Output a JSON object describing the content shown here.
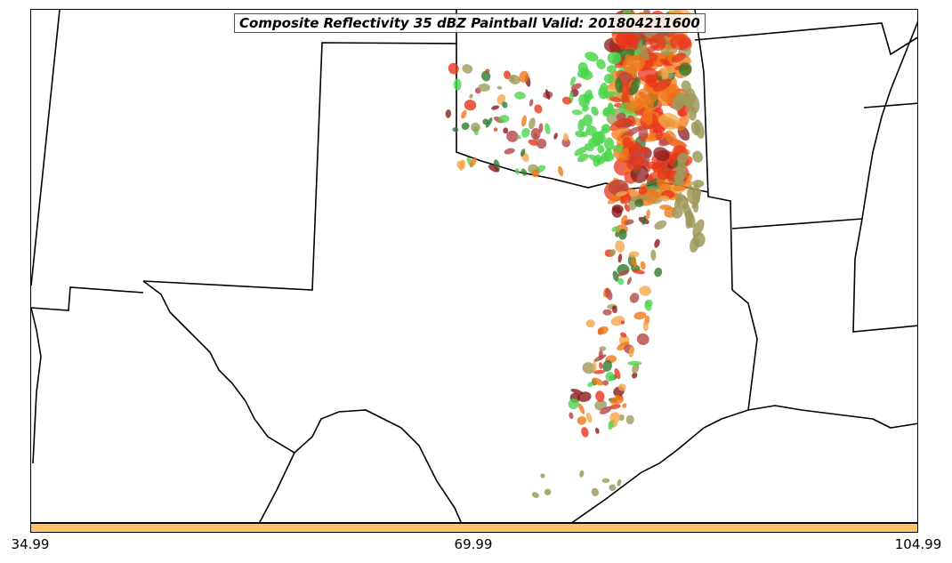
{
  "title": "Composite Reflectivity 35 dBZ Paintball Valid: 201804211600",
  "colorbar": {
    "color": "#ffc266",
    "tick_labels": [
      "34.99",
      "69.99",
      "104.99"
    ]
  },
  "paintball_colors": [
    "#e8361a",
    "#f07818",
    "#b54545",
    "#9e9a5a",
    "#4cd64c",
    "#2e7a2e",
    "#f5a84a",
    "#8b1a1a"
  ]
}
